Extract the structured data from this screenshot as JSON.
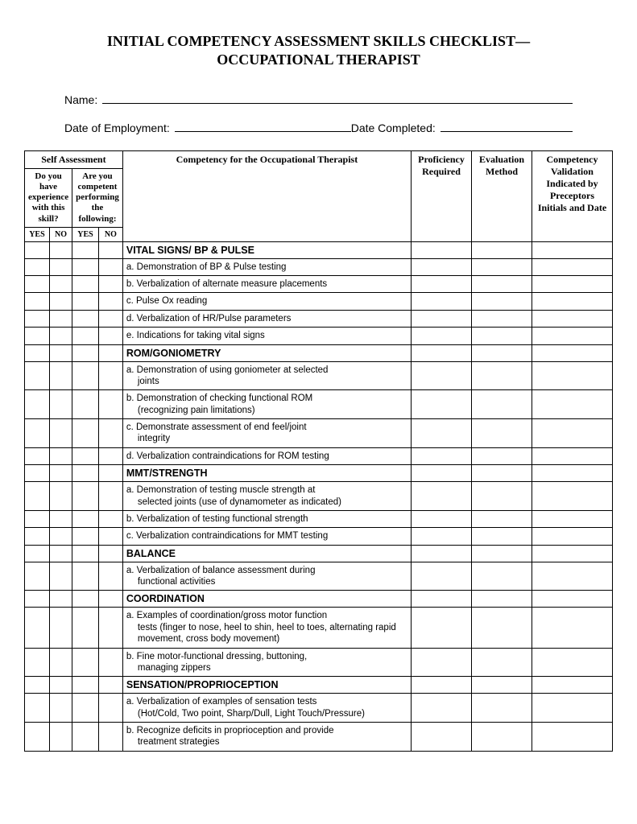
{
  "title_line1": "INITIAL COMPETENCY ASSESSMENT SKILLS CHECKLIST—",
  "title_line2": "OCCUPATIONAL THERAPIST",
  "fields": {
    "name_label": "Name:",
    "doe_label": "Date of Employment:",
    "dc_label": "Date Completed:"
  },
  "headers": {
    "self_assessment": "Self Assessment",
    "q1": "Do you have experience with this skill?",
    "q2": "Are you competent performing the following:",
    "yes": "YES",
    "no": "NO",
    "competency": "Competency for the Occupational Therapist",
    "proficiency": "Proficiency Required",
    "evaluation": "Evaluation Method",
    "validation": "Competency Validation Indicated by Preceptors Initials and Date"
  },
  "rows": [
    {
      "type": "section",
      "text": "VITAL SIGNS/ BP & PULSE"
    },
    {
      "type": "item",
      "text": "a. Demonstration of BP & Pulse testing"
    },
    {
      "type": "item",
      "text": "b. Verbalization of alternate measure placements"
    },
    {
      "type": "item",
      "text": "c. Pulse Ox reading"
    },
    {
      "type": "item",
      "text": "d. Verbalization of HR/Pulse parameters"
    },
    {
      "type": "item",
      "text": "e. Indications for taking vital signs"
    },
    {
      "type": "section",
      "text": "ROM/GONIOMETRY"
    },
    {
      "type": "item",
      "text": "a. Demonstration of using goniometer at selected",
      "sub": "joints"
    },
    {
      "type": "item",
      "text": "b. Demonstration of checking functional ROM",
      "sub": "(recognizing pain limitations)"
    },
    {
      "type": "item",
      "text": "c. Demonstrate assessment of end feel/joint",
      "sub": "integrity"
    },
    {
      "type": "item",
      "text": "d. Verbalization contraindications for ROM testing"
    },
    {
      "type": "section",
      "text": "MMT/STRENGTH"
    },
    {
      "type": "item",
      "text": "a. Demonstration of testing muscle strength at",
      "sub": "selected joints (use of dynamometer as indicated)"
    },
    {
      "type": "item",
      "text": "b. Verbalization of testing functional strength"
    },
    {
      "type": "item",
      "text": "c. Verbalization contraindications for MMT testing"
    },
    {
      "type": "section",
      "text": "BALANCE"
    },
    {
      "type": "item",
      "text": "a. Verbalization of balance assessment during",
      "sub": "functional activities"
    },
    {
      "type": "section",
      "text": "COORDINATION"
    },
    {
      "type": "item",
      "text": "a. Examples of coordination/gross motor function",
      "sub": "tests (finger to nose, heel to shin, heel to toes, alternating rapid movement, cross body movement)"
    },
    {
      "type": "item",
      "text": "b. Fine motor-functional dressing, buttoning,",
      "sub": "managing zippers"
    },
    {
      "type": "section",
      "text": "SENSATION/PROPRIOCEPTION"
    },
    {
      "type": "item",
      "text": "a. Verbalization of examples of sensation tests",
      "sub": "(Hot/Cold, Two point, Sharp/Dull, Light Touch/Pressure)"
    },
    {
      "type": "item",
      "text": "b. Recognize deficits in proprioception and provide",
      "sub": "treatment strategies"
    }
  ]
}
